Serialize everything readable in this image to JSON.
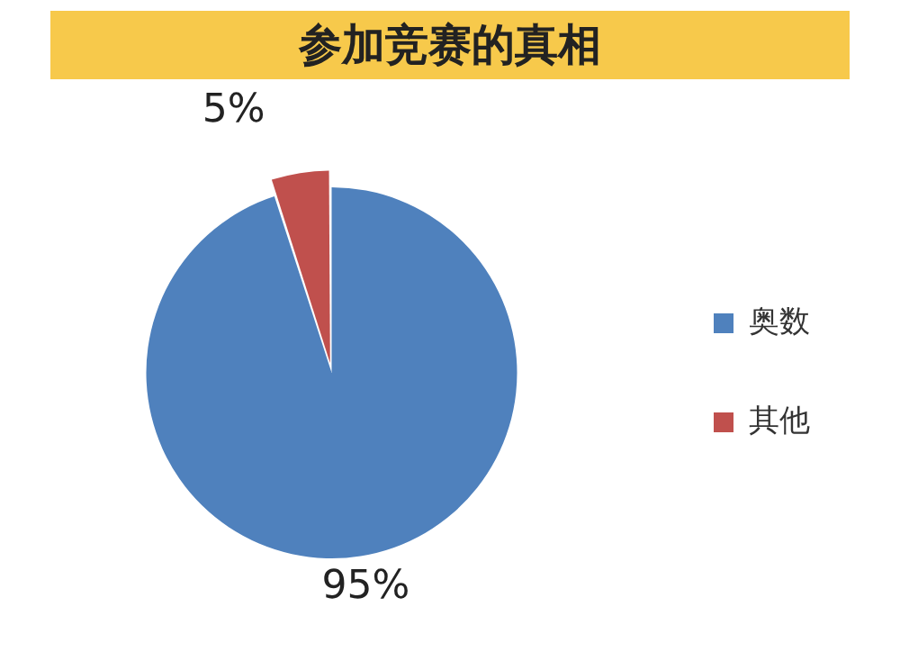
{
  "chart_data": {
    "type": "pie",
    "title": "参加竞赛的真相",
    "categories": [
      "奥数",
      "其他"
    ],
    "values": [
      95,
      5
    ],
    "colors": [
      "#4f81bd",
      "#c0504d"
    ],
    "value_labels": [
      "95%",
      "5%"
    ],
    "legend": "right"
  }
}
